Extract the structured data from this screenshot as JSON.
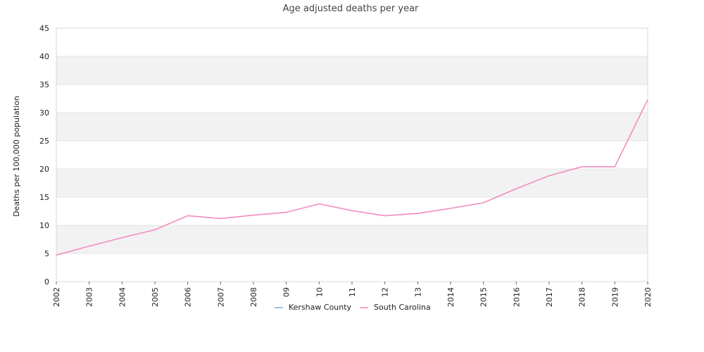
{
  "chart_data": {
    "type": "line",
    "title": "Age adjusted deaths per year",
    "xlabel": "",
    "ylabel": "Deaths per 100,000 population",
    "ylim": [
      0,
      45
    ],
    "yticks": [
      0,
      5,
      10,
      15,
      20,
      25,
      30,
      35,
      40,
      45
    ],
    "categories": [
      "2002",
      "2003",
      "2004",
      "2005",
      "2006",
      "2007",
      "2008",
      "09",
      "10",
      "11",
      "12",
      "13",
      "2014",
      "2015",
      "2016",
      "2017",
      "2018",
      "2019",
      "2020"
    ],
    "grid": "horizontal alternating bands",
    "legend_position": "bottom",
    "series": [
      {
        "name": "Kershaw County",
        "color": "#7fb8d8",
        "values": [
          null,
          null,
          null,
          null,
          null,
          null,
          null,
          null,
          null,
          null,
          null,
          null,
          null,
          null,
          null,
          null,
          null,
          null,
          null
        ]
      },
      {
        "name": "South Carolina",
        "color": "#f28cc0",
        "values": [
          4.7,
          6.3,
          7.8,
          9.2,
          11.7,
          11.2,
          11.8,
          12.3,
          13.8,
          12.6,
          11.7,
          12.1,
          13.0,
          14.0,
          16.5,
          18.8,
          20.4,
          20.4,
          32.3
        ]
      }
    ]
  }
}
